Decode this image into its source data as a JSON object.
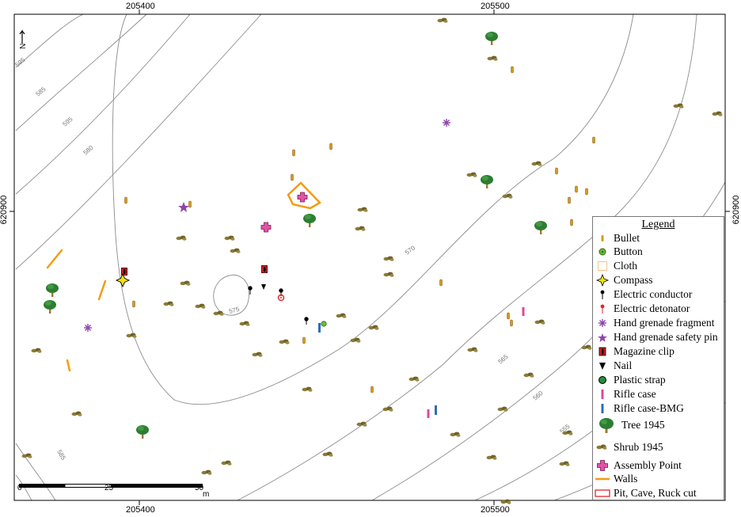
{
  "grid_labels": {
    "x_top": [
      "205400",
      "205500"
    ],
    "x_bottom": [
      "205400",
      "205500"
    ],
    "y_left": "620900",
    "y_right": "620900"
  },
  "contour_labels": [
    "575",
    "570",
    "565",
    "560",
    "555",
    "595",
    "585",
    "580"
  ],
  "north_arrow_label": "N",
  "scale_bar": {
    "ticks": [
      "0",
      "25",
      "50"
    ],
    "unit": "m"
  },
  "legend": {
    "title": "Legend",
    "items": [
      {
        "label": "Bullet",
        "icon": "bullet-icon",
        "color": "#d69a1e"
      },
      {
        "label": "Button",
        "icon": "button-icon",
        "color": "#6bbf3a"
      },
      {
        "label": "Cloth",
        "icon": "cloth-icon",
        "color": "#f6c28a"
      },
      {
        "label": "Compass",
        "icon": "compass-icon",
        "color": "#f2e20f"
      },
      {
        "label": "Electric conductor",
        "icon": "electric-conductor-icon",
        "color": "#000000"
      },
      {
        "label": "Electric detonator",
        "icon": "electric-detonator-icon",
        "color": "#e0262b"
      },
      {
        "label": "Hand grenade fragment",
        "icon": "grenade-fragment-icon",
        "color": "#8e44ad"
      },
      {
        "label": "Hand grenade safety pin",
        "icon": "safety-pin-icon",
        "color": "#8e44ad"
      },
      {
        "label": "Magazine clip",
        "icon": "magazine-clip-icon",
        "color": "#d81f26"
      },
      {
        "label": "Nail",
        "icon": "nail-icon",
        "color": "#000000"
      },
      {
        "label": "Plastic strap",
        "icon": "plastic-strap-icon",
        "color": "#1f8f3a"
      },
      {
        "label": "Rifle case",
        "icon": "rifle-case-icon",
        "color": "#e0479c"
      },
      {
        "label": "Rifle case-BMG",
        "icon": "rifle-case-bmg-icon",
        "color": "#2f6db5"
      },
      {
        "label": "Tree 1945",
        "icon": "tree-icon",
        "color": "#2e7d32"
      },
      {
        "label": "Shrub 1945",
        "icon": "shrub-icon",
        "color": "#7a6a2a"
      },
      {
        "label": "Assembly Point",
        "icon": "assembly-point-icon",
        "color": "#c2257a"
      },
      {
        "label": "Walls",
        "icon": "walls-icon",
        "color": "#f39c12"
      },
      {
        "label": "Pit, Cave, Ruck cut",
        "icon": "pit-icon",
        "color": "#e0262b"
      }
    ]
  }
}
